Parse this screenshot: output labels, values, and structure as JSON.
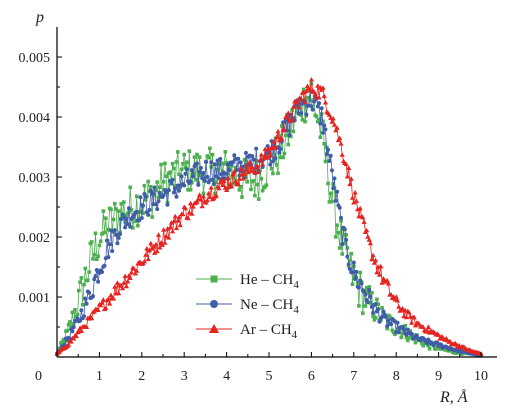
{
  "chart_data": {
    "type": "line",
    "ylabel": "p",
    "xlabel": "R, Å",
    "origin_label": "0",
    "xlim": [
      0,
      10
    ],
    "ylim": [
      0,
      0.0055
    ],
    "x_ticks": [
      "1",
      "2",
      "3",
      "4",
      "5",
      "6",
      "7",
      "8",
      "9",
      "10"
    ],
    "y_ticks": [
      "0.001",
      "0.002",
      "0.003",
      "0.004",
      "0.005"
    ],
    "y_tick_values": [
      0.001,
      0.002,
      0.003,
      0.004,
      0.005
    ],
    "legend_position": "lower-center",
    "series": [
      {
        "name": "He – CH",
        "subscript": "4",
        "color": "#4caf50",
        "marker": "square",
        "x": [
          0.0,
          0.25,
          0.5,
          0.75,
          1.0,
          1.25,
          1.5,
          1.75,
          2.0,
          2.25,
          2.5,
          2.75,
          3.0,
          3.25,
          3.5,
          3.75,
          4.0,
          4.25,
          4.5,
          4.75,
          5.0,
          5.25,
          5.5,
          5.75,
          6.0,
          6.25,
          6.5,
          6.75,
          7.0,
          7.25,
          7.5,
          7.75,
          8.0,
          8.25,
          8.5,
          8.75,
          9.0,
          9.25,
          9.5,
          9.75,
          10.0
        ],
        "y": [
          5e-05,
          0.0004,
          0.0009,
          0.0015,
          0.002,
          0.0022,
          0.0024,
          0.0025,
          0.0026,
          0.0027,
          0.0029,
          0.003,
          0.0031,
          0.0031,
          0.0031,
          0.0031,
          0.0031,
          0.003,
          0.0029,
          0.003,
          0.0032,
          0.0034,
          0.0038,
          0.0042,
          0.0044,
          0.0037,
          0.0026,
          0.0018,
          0.0013,
          0.001,
          0.0008,
          0.0006,
          0.0005,
          0.0004,
          0.0003,
          0.0002,
          0.00015,
          0.0001,
          8e-05,
          5e-05,
          3e-05
        ],
        "amp": 0.00038
      },
      {
        "name": "Ne – CH",
        "subscript": "4",
        "color": "#3f5da8",
        "marker": "circle",
        "x": [
          0.0,
          0.25,
          0.5,
          0.75,
          1.0,
          1.25,
          1.5,
          1.75,
          2.0,
          2.25,
          2.5,
          2.75,
          3.0,
          3.25,
          3.5,
          3.75,
          4.0,
          4.25,
          4.5,
          4.75,
          5.0,
          5.25,
          5.5,
          5.75,
          6.0,
          6.25,
          6.5,
          6.75,
          7.0,
          7.25,
          7.5,
          7.75,
          8.0,
          8.25,
          8.5,
          8.75,
          9.0,
          9.25,
          9.5,
          9.75,
          10.0
        ],
        "y": [
          5e-05,
          0.0003,
          0.0006,
          0.001,
          0.0015,
          0.0019,
          0.0022,
          0.0024,
          0.0025,
          0.0026,
          0.0027,
          0.0028,
          0.0029,
          0.003,
          0.0031,
          0.0031,
          0.0031,
          0.0032,
          0.0032,
          0.0033,
          0.0034,
          0.0036,
          0.0039,
          0.0042,
          0.0043,
          0.004,
          0.003,
          0.002,
          0.0014,
          0.0011,
          0.0008,
          0.0006,
          0.0005,
          0.0004,
          0.0003,
          0.00025,
          0.0002,
          0.00015,
          0.0001,
          6e-05,
          3e-05
        ],
        "amp": 0.00022
      },
      {
        "name": "Ar – CH",
        "subscript": "4",
        "color": "#e52421",
        "marker": "triangle",
        "x": [
          0.0,
          0.25,
          0.5,
          0.75,
          1.0,
          1.25,
          1.5,
          1.75,
          2.0,
          2.25,
          2.5,
          2.75,
          3.0,
          3.25,
          3.5,
          3.75,
          4.0,
          4.25,
          4.5,
          4.75,
          5.0,
          5.25,
          5.5,
          5.75,
          6.0,
          6.25,
          6.5,
          6.75,
          7.0,
          7.25,
          7.5,
          7.75,
          8.0,
          8.25,
          8.5,
          8.75,
          9.0,
          9.25,
          9.5,
          9.75,
          10.0
        ],
        "y": [
          5e-05,
          0.0002,
          0.0004,
          0.0006,
          0.0008,
          0.001,
          0.0012,
          0.0014,
          0.0016,
          0.0018,
          0.002,
          0.0022,
          0.0024,
          0.0025,
          0.0027,
          0.0028,
          0.0029,
          0.003,
          0.0031,
          0.0032,
          0.0034,
          0.0037,
          0.004,
          0.0043,
          0.0045,
          0.0044,
          0.004,
          0.0034,
          0.0027,
          0.0021,
          0.0016,
          0.0012,
          0.0009,
          0.0007,
          0.00055,
          0.00045,
          0.00035,
          0.00025,
          0.00018,
          0.0001,
          5e-05
        ],
        "amp": 0.00014
      }
    ]
  }
}
